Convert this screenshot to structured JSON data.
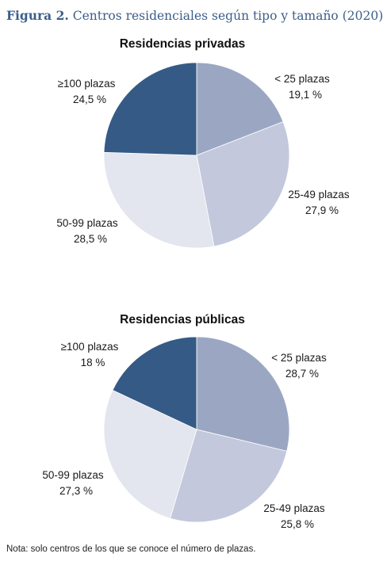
{
  "figure": {
    "title_lead": "Figura 2.",
    "title_rest": " Centros residenciales según tipo y tamaño (2020)",
    "note": "Nota: solo centros de los que se conoce el número de plazas."
  },
  "colors": {
    "title": "#3b5f8a",
    "slices": [
      "#9ba7c2",
      "#c4c8dd",
      "#e3e5ef",
      "#355a86"
    ],
    "edge": "#ffffff"
  },
  "chart_data": [
    {
      "type": "pie",
      "title": "Residencias privadas",
      "slices": [
        {
          "label": "< 25 plazas",
          "value": 19.1,
          "value_label": "19,1 %"
        },
        {
          "label": "25-49 plazas",
          "value": 27.9,
          "value_label": "27,9 %"
        },
        {
          "label": "50-99 plazas",
          "value": 28.5,
          "value_label": "28,5 %"
        },
        {
          "label": "≥100 plazas",
          "value": 24.5,
          "value_label": "24,5 %"
        }
      ]
    },
    {
      "type": "pie",
      "title": "Residencias públicas",
      "slices": [
        {
          "label": "< 25 plazas",
          "value": 28.7,
          "value_label": "28,7 %"
        },
        {
          "label": "25-49 plazas",
          "value": 25.8,
          "value_label": "25,8 %"
        },
        {
          "label": "50-99 plazas",
          "value": 27.3,
          "value_label": "27,3 %"
        },
        {
          "label": "≥100 plazas",
          "value": 18,
          "value_label": "18 %"
        }
      ]
    }
  ]
}
